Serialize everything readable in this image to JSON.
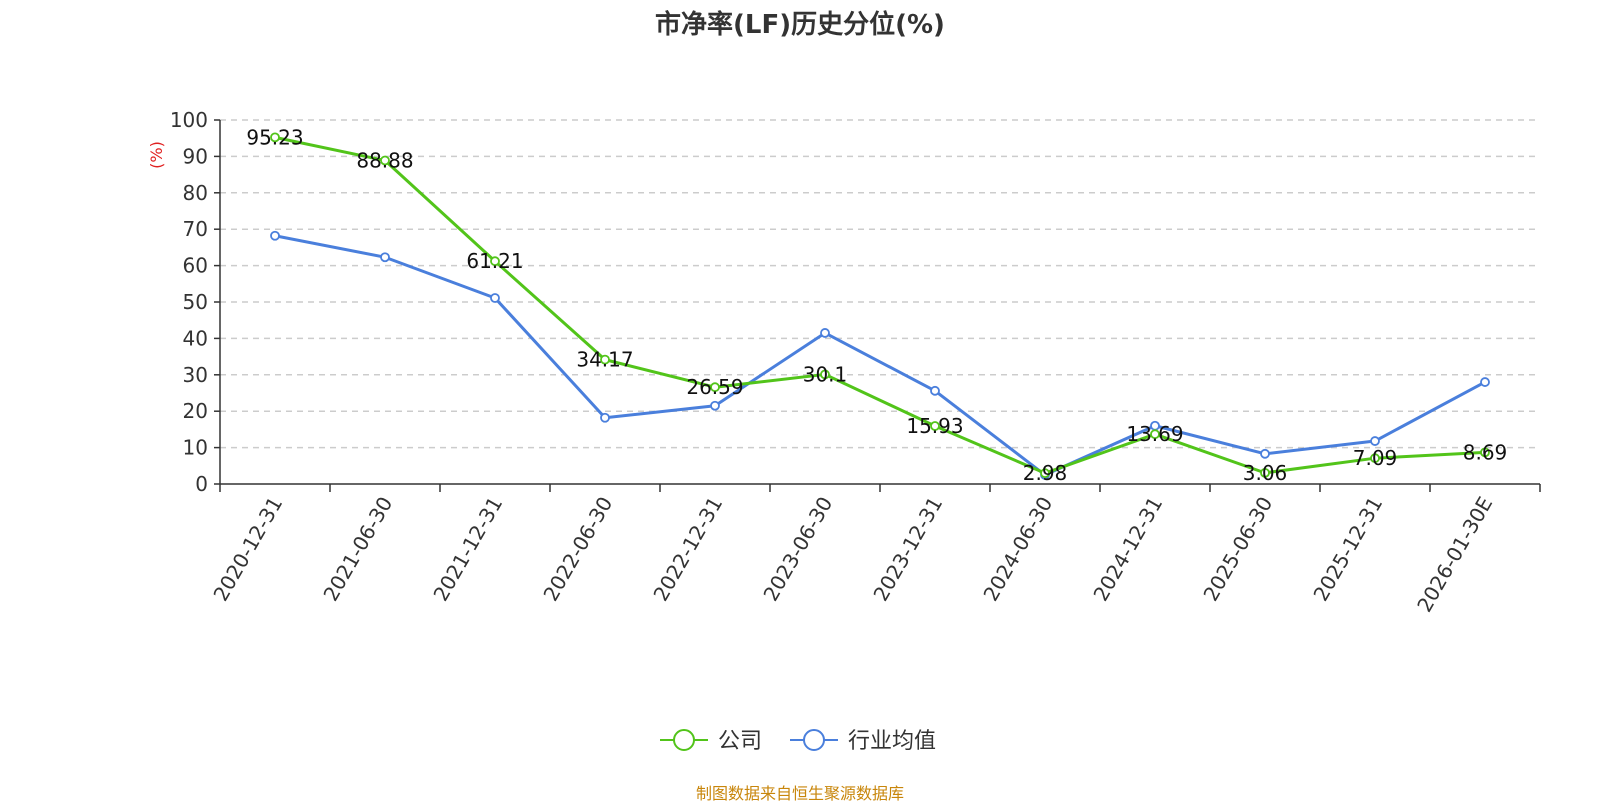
{
  "chart_data": {
    "type": "line",
    "title": "市净率(LF)历史分位(%)",
    "ylabel": "(%)",
    "ylim": [
      0,
      100
    ],
    "yticks": [
      0,
      10,
      20,
      30,
      40,
      50,
      60,
      70,
      80,
      90,
      100
    ],
    "grid": true,
    "categories": [
      "2020-12-31",
      "2021-06-30",
      "2021-12-31",
      "2022-06-30",
      "2022-12-31",
      "2023-06-30",
      "2023-12-31",
      "2024-06-30",
      "2024-12-31",
      "2025-06-30",
      "2025-12-31",
      "2026-01-30E"
    ],
    "series": [
      {
        "name": "公司",
        "color": "#52c41a",
        "values": [
          95.23,
          88.88,
          61.21,
          34.17,
          26.59,
          30.1,
          15.93,
          2.98,
          13.69,
          3.06,
          7.09,
          8.69
        ],
        "labels": [
          "95.23",
          "88.88",
          "61.21",
          "34.17",
          "26.59",
          "30.1",
          "15.93",
          "2.98",
          "13.69",
          "3.06",
          "7.09",
          "8.69"
        ]
      },
      {
        "name": "行业均值",
        "color": "#4a7fdc",
        "values": [
          68.2,
          62.3,
          51.1,
          18.2,
          21.5,
          41.5,
          25.6,
          2.5,
          16.0,
          8.3,
          11.8,
          28.0
        ]
      }
    ],
    "legend_position": "bottom-center"
  },
  "source_note": "制图数据来自恒生聚源数据库"
}
